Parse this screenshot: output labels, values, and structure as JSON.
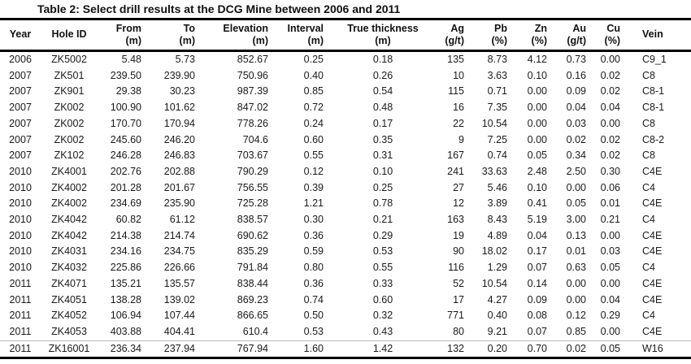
{
  "title": "Table 2: Select drill results at the DCG Mine between 2006 and 2011",
  "colors": {
    "background": "#ffffff",
    "text": "#111111",
    "table_border": "#000000",
    "last_row_divider": "#bdbdbd"
  },
  "table": {
    "columns": [
      {
        "label": "Year",
        "unit": ""
      },
      {
        "label": "Hole ID",
        "unit": ""
      },
      {
        "label": "From",
        "unit": "(m)"
      },
      {
        "label": "To",
        "unit": "(m)"
      },
      {
        "label": "Elevation",
        "unit": "(m)"
      },
      {
        "label": "Interval",
        "unit": "(m)"
      },
      {
        "label": "True thickness",
        "unit": "(m)"
      },
      {
        "label": "Ag",
        "unit": "(g/t)"
      },
      {
        "label": "Pb",
        "unit": "(%)"
      },
      {
        "label": "Zn",
        "unit": "(%)"
      },
      {
        "label": "Au",
        "unit": "(g/t)"
      },
      {
        "label": "Cu",
        "unit": "(%)"
      },
      {
        "label": "Vein",
        "unit": ""
      }
    ],
    "rows": [
      [
        "2006",
        "ZK5002",
        "5.48",
        "5.73",
        "852.67",
        "0.25",
        "0.18",
        "135",
        "8.73",
        "4.12",
        "0.73",
        "0.00",
        "C9_1"
      ],
      [
        "2007",
        "ZK501",
        "239.50",
        "239.90",
        "750.96",
        "0.40",
        "0.26",
        "10",
        "3.63",
        "0.10",
        "0.16",
        "0.02",
        "C8"
      ],
      [
        "2007",
        "ZK901",
        "29.38",
        "30.23",
        "987.39",
        "0.85",
        "0.54",
        "115",
        "0.71",
        "0.00",
        "0.09",
        "0.02",
        "C8-1"
      ],
      [
        "2007",
        "ZK002",
        "100.90",
        "101.62",
        "847.02",
        "0.72",
        "0.48",
        "16",
        "7.35",
        "0.00",
        "0.04",
        "0.04",
        "C8-1"
      ],
      [
        "2007",
        "ZK002",
        "170.70",
        "170.94",
        "778.26",
        "0.24",
        "0.17",
        "22",
        "10.54",
        "0.00",
        "0.03",
        "0.00",
        "C8"
      ],
      [
        "2007",
        "ZK002",
        "245.60",
        "246.20",
        "704.6",
        "0.60",
        "0.35",
        "9",
        "7.25",
        "0.00",
        "0.02",
        "0.02",
        "C8-2"
      ],
      [
        "2007",
        "ZK102",
        "246.28",
        "246.83",
        "703.67",
        "0.55",
        "0.31",
        "167",
        "0.74",
        "0.05",
        "0.34",
        "0.02",
        "C8"
      ],
      [
        "2010",
        "ZK4001",
        "202.76",
        "202.88",
        "790.29",
        "0.12",
        "0.10",
        "241",
        "33.63",
        "2.48",
        "2.50",
        "0.30",
        "C4E"
      ],
      [
        "2010",
        "ZK4002",
        "201.28",
        "201.67",
        "756.55",
        "0.39",
        "0.25",
        "27",
        "5.46",
        "0.10",
        "0.00",
        "0.06",
        "C4"
      ],
      [
        "2010",
        "ZK4002",
        "234.69",
        "235.90",
        "725.28",
        "1.21",
        "0.78",
        "12",
        "3.89",
        "0.41",
        "0.05",
        "0.01",
        "C4E"
      ],
      [
        "2010",
        "ZK4042",
        "60.82",
        "61.12",
        "838.57",
        "0.30",
        "0.21",
        "163",
        "8.43",
        "5.19",
        "3.00",
        "0.21",
        "C4"
      ],
      [
        "2010",
        "ZK4042",
        "214.38",
        "214.74",
        "690.62",
        "0.36",
        "0.29",
        "19",
        "4.89",
        "0.04",
        "0.13",
        "0.00",
        "C4E"
      ],
      [
        "2010",
        "ZK4031",
        "234.16",
        "234.75",
        "835.29",
        "0.59",
        "0.53",
        "90",
        "18.02",
        "0.17",
        "0.01",
        "0.03",
        "C4E"
      ],
      [
        "2010",
        "ZK4032",
        "225.86",
        "226.66",
        "791.84",
        "0.80",
        "0.55",
        "116",
        "1.29",
        "0.07",
        "0.63",
        "0.05",
        "C4"
      ],
      [
        "2011",
        "ZK4071",
        "135.21",
        "135.57",
        "838.44",
        "0.36",
        "0.33",
        "52",
        "10.54",
        "0.14",
        "0.00",
        "0.00",
        "C4E"
      ],
      [
        "2011",
        "ZK4051",
        "138.28",
        "139.02",
        "869.23",
        "0.74",
        "0.60",
        "17",
        "4.27",
        "0.09",
        "0.00",
        "0.04",
        "C4E"
      ],
      [
        "2011",
        "ZK4052",
        "106.94",
        "107.44",
        "866.65",
        "0.50",
        "0.32",
        "771",
        "0.40",
        "0.08",
        "0.12",
        "0.29",
        "C4"
      ],
      [
        "2011",
        "ZK4053",
        "403.88",
        "404.41",
        "610.4",
        "0.53",
        "0.43",
        "80",
        "9.21",
        "0.07",
        "0.85",
        "0.00",
        "C4E"
      ],
      [
        "2011",
        "ZK16001",
        "236.34",
        "237.94",
        "767.94",
        "1.60",
        "1.42",
        "132",
        "0.20",
        "0.70",
        "0.02",
        "0.05",
        "W16"
      ]
    ]
  }
}
